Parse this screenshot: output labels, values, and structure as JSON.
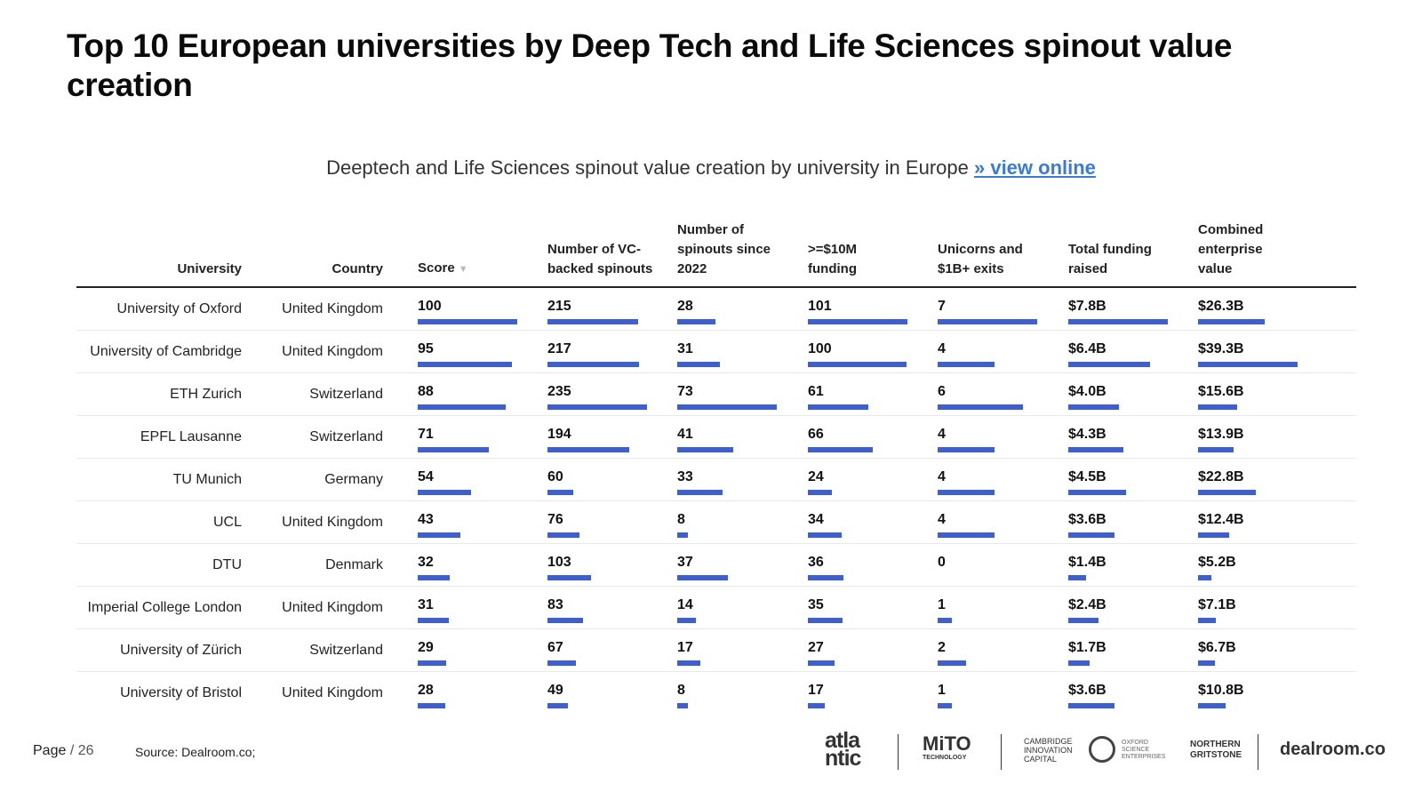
{
  "title": "Top 10 European universities by Deep Tech and Life Sciences spinout value creation",
  "subtitle": "Deeptech and Life Sciences spinout value creation by university in Europe",
  "subtitle_link": "» view online",
  "accent_color": "#3d5fd1",
  "link_color": "#3a7bd5",
  "columns": {
    "university": "University",
    "country": "Country",
    "score": "Score",
    "spinouts": "Number of VC-backed spinouts",
    "since2022": "Number of spinouts since 2022",
    "funding10m": ">=$10M funding",
    "unicorns": "Unicorns and $1B+ exits",
    "total_funding": "Total funding raised",
    "ev": "Combined enterprise value"
  },
  "sort_icon": "sort-down-triangle-icon",
  "rows": [
    {
      "university": "University of Oxford",
      "country": "United Kingdom",
      "score": "100",
      "spinouts": "215",
      "since2022": "28",
      "funding10m": "101",
      "unicorns": "7",
      "total_funding": "$7.8B",
      "ev": "$26.3B"
    },
    {
      "university": "University of Cambridge",
      "country": "United Kingdom",
      "score": "95",
      "spinouts": "217",
      "since2022": "31",
      "funding10m": "100",
      "unicorns": "4",
      "total_funding": "$6.4B",
      "ev": "$39.3B"
    },
    {
      "university": "ETH Zurich",
      "country": "Switzerland",
      "score": "88",
      "spinouts": "235",
      "since2022": "73",
      "funding10m": "61",
      "unicorns": "6",
      "total_funding": "$4.0B",
      "ev": "$15.6B"
    },
    {
      "university": "EPFL Lausanne",
      "country": "Switzerland",
      "score": "71",
      "spinouts": "194",
      "since2022": "41",
      "funding10m": "66",
      "unicorns": "4",
      "total_funding": "$4.3B",
      "ev": "$13.9B"
    },
    {
      "university": "TU Munich",
      "country": "Germany",
      "score": "54",
      "spinouts": "60",
      "since2022": "33",
      "funding10m": "24",
      "unicorns": "4",
      "total_funding": "$4.5B",
      "ev": "$22.8B"
    },
    {
      "university": "UCL",
      "country": "United Kingdom",
      "score": "43",
      "spinouts": "76",
      "since2022": "8",
      "funding10m": "34",
      "unicorns": "4",
      "total_funding": "$3.6B",
      "ev": "$12.4B"
    },
    {
      "university": "DTU",
      "country": "Denmark",
      "score": "32",
      "spinouts": "103",
      "since2022": "37",
      "funding10m": "36",
      "unicorns": "0",
      "total_funding": "$1.4B",
      "ev": "$5.2B"
    },
    {
      "university": "Imperial College London",
      "country": "United Kingdom",
      "score": "31",
      "spinouts": "83",
      "since2022": "14",
      "funding10m": "35",
      "unicorns": "1",
      "total_funding": "$2.4B",
      "ev": "$7.1B"
    },
    {
      "university": "University of Zürich",
      "country": "Switzerland",
      "score": "29",
      "spinouts": "67",
      "since2022": "17",
      "funding10m": "27",
      "unicorns": "2",
      "total_funding": "$1.7B",
      "ev": "$6.7B"
    },
    {
      "university": "University of Bristol",
      "country": "United Kingdom",
      "score": "28",
      "spinouts": "49",
      "since2022": "8",
      "funding10m": "17",
      "unicorns": "1",
      "total_funding": "$3.6B",
      "ev": "$10.8B"
    }
  ],
  "footer": {
    "page_label": "Page",
    "page_total": "/ 26",
    "source": "Source:  Dealroom.co;"
  },
  "logos": {
    "atlantic_l1": "atla",
    "atlantic_l2": "ntic",
    "mito": "MiTO",
    "mito_sub": "TECHNOLOGY",
    "cic_l1": "CAMBRIDGE",
    "cic_l2": "INNOVATION",
    "cic_l3": "CAPITAL",
    "ose_l1": "OXFORD",
    "ose_l2": "SCIENCE",
    "ose_l3": "ENTERPRISES",
    "ng_l1": "NORTHERN",
    "ng_l2": "GRITSTONE",
    "dealroom": "dealroom.co"
  }
}
